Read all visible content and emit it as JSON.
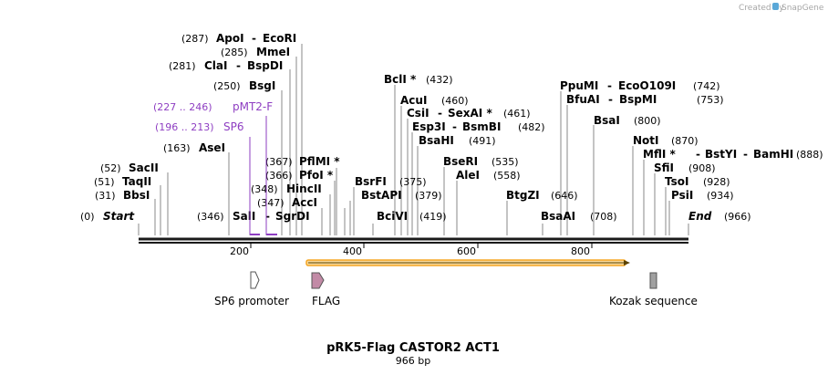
{
  "credit": "Created by",
  "brand": "SnapGene",
  "logo_icon": "snapgene-logo-icon",
  "title": "pRK5-Flag CASTOR2 ACT1",
  "length": "966 bp",
  "ruler": {
    "min": 0,
    "max": 966,
    "ticks": [
      "200",
      "400",
      "600",
      "800"
    ]
  },
  "sites": {
    "s287": {
      "pos": "(287)",
      "a": "ApoI",
      "sep": "-",
      "b": "EcoRI"
    },
    "s285": {
      "pos": "(285)",
      "a": "MmeI"
    },
    "s281": {
      "pos": "(281)",
      "a": "ClaI",
      "sep": "-",
      "b": "BspDI"
    },
    "s250": {
      "pos": "(250)",
      "a": "BsgI"
    },
    "s163": {
      "pos": "(163)",
      "a": "AseI"
    },
    "s52": {
      "pos": "(52)",
      "a": "SacII"
    },
    "s51": {
      "pos": "(51)",
      "a": "TaqII"
    },
    "s31": {
      "pos": "(31)",
      "a": "BbsI"
    },
    "s0": {
      "pos": "(0)",
      "a": "Start"
    },
    "s346": {
      "pos": "(346)",
      "a": "SalI",
      "sep": "-",
      "b": "SgrDI"
    },
    "s367": {
      "pos": "(367)",
      "a": "PflMI *"
    },
    "s366": {
      "pos": "(366)",
      "a": "PfoI *"
    },
    "s348": {
      "pos": "(348)",
      "a": "HincII"
    },
    "s347": {
      "pos": "(347)",
      "a": "AccI"
    },
    "s432": {
      "pos": "(432)",
      "a": "BclI *"
    },
    "s460": {
      "pos": "(460)",
      "a": "AcuI"
    },
    "s461": {
      "pos": "(461)",
      "a": "CsiI",
      "sep": "-",
      "b": "SexAI *"
    },
    "s482": {
      "pos": "(482)",
      "a": "Esp3I",
      "sep": "-",
      "b": "BsmBI"
    },
    "s491": {
      "pos": "(491)",
      "a": "BsaHI"
    },
    "s375": {
      "pos": "(375)",
      "a": "BsrFI"
    },
    "s379": {
      "pos": "(379)",
      "a": "BstAPI"
    },
    "s419": {
      "pos": "(419)",
      "a": "BciVI"
    },
    "s535": {
      "pos": "(535)",
      "a": "BseRI"
    },
    "s558": {
      "pos": "(558)",
      "a": "AleI"
    },
    "s646": {
      "pos": "(646)",
      "a": "BtgZI"
    },
    "s742": {
      "pos": "(742)",
      "a": "PpuMI",
      "sep": "-",
      "b": "EcoO109I"
    },
    "s753": {
      "pos": "(753)",
      "a": "BfuAI",
      "sep": "-",
      "b": "BspMI"
    },
    "s800": {
      "pos": "(800)",
      "a": "BsaI"
    },
    "s708": {
      "pos": "(708)",
      "a": "BsaAI"
    },
    "s870": {
      "pos": "(870)",
      "a": "NotI"
    },
    "s888": {
      "pos": "(888)",
      "a": "MflI *",
      "sep": "-",
      "b": "BstYI",
      "sep2": "-",
      "c": "BamHI"
    },
    "s908": {
      "pos": "(908)",
      "a": "SfiI"
    },
    "s928": {
      "pos": "(928)",
      "a": "TsoI"
    },
    "s934": {
      "pos": "(934)",
      "a": "PsiI"
    },
    "s966": {
      "pos": "(966)",
      "a": "End"
    }
  },
  "primers": {
    "pmt2f": {
      "pos": "(227 .. 246)",
      "name": "pMT2-F"
    },
    "sp6": {
      "pos": "(196 .. 213)",
      "name": "SP6"
    }
  },
  "features": {
    "sp6_promoter": "SP6 promoter",
    "flag": "FLAG",
    "kozak": "Kozak sequence"
  },
  "colors": {
    "backbone": "#1a1a1a",
    "primer": "#8e3ec2",
    "orf": "#f5a623",
    "orf_fill": "#f7d89a",
    "flag": "#c28aa6",
    "kozak": "#a0a0a0",
    "promoter": "#ffffff",
    "logo": "#5aa8d8"
  }
}
